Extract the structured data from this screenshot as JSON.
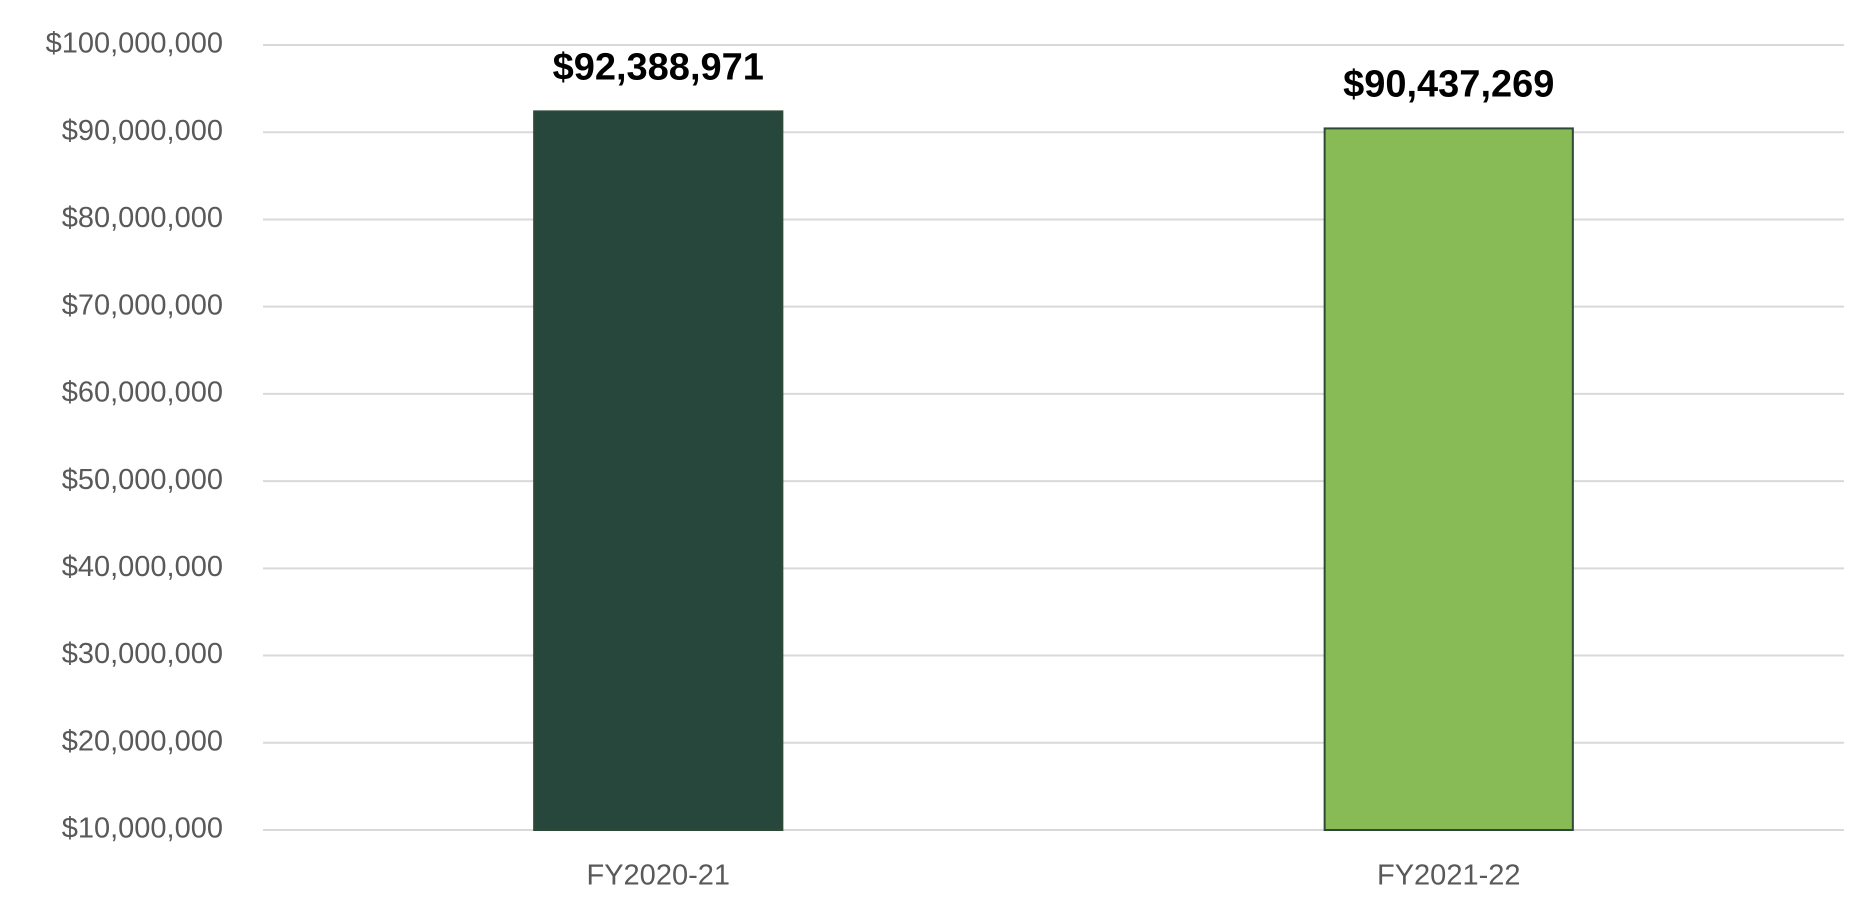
{
  "chart_data": {
    "type": "bar",
    "categories": [
      "FY2020-21",
      "FY2021-22"
    ],
    "values": [
      92388971,
      90437269
    ],
    "value_labels": [
      "$92,388,971",
      "$90,437,269"
    ],
    "colors": [
      "#27463c",
      "#88bb55"
    ],
    "ylim": [
      10000000,
      100000000
    ],
    "yticks": [
      {
        "value": 10000000,
        "label": "$10,000,000"
      },
      {
        "value": 20000000,
        "label": "$20,000,000"
      },
      {
        "value": 30000000,
        "label": "$30,000,000"
      },
      {
        "value": 40000000,
        "label": "$40,000,000"
      },
      {
        "value": 50000000,
        "label": "$50,000,000"
      },
      {
        "value": 60000000,
        "label": "$60,000,000"
      },
      {
        "value": 70000000,
        "label": "$70,000,000"
      },
      {
        "value": 80000000,
        "label": "$80,000,000"
      },
      {
        "value": 90000000,
        "label": "$90,000,000"
      },
      {
        "value": 100000000,
        "label": "$100,000,000"
      }
    ],
    "grid": true
  }
}
